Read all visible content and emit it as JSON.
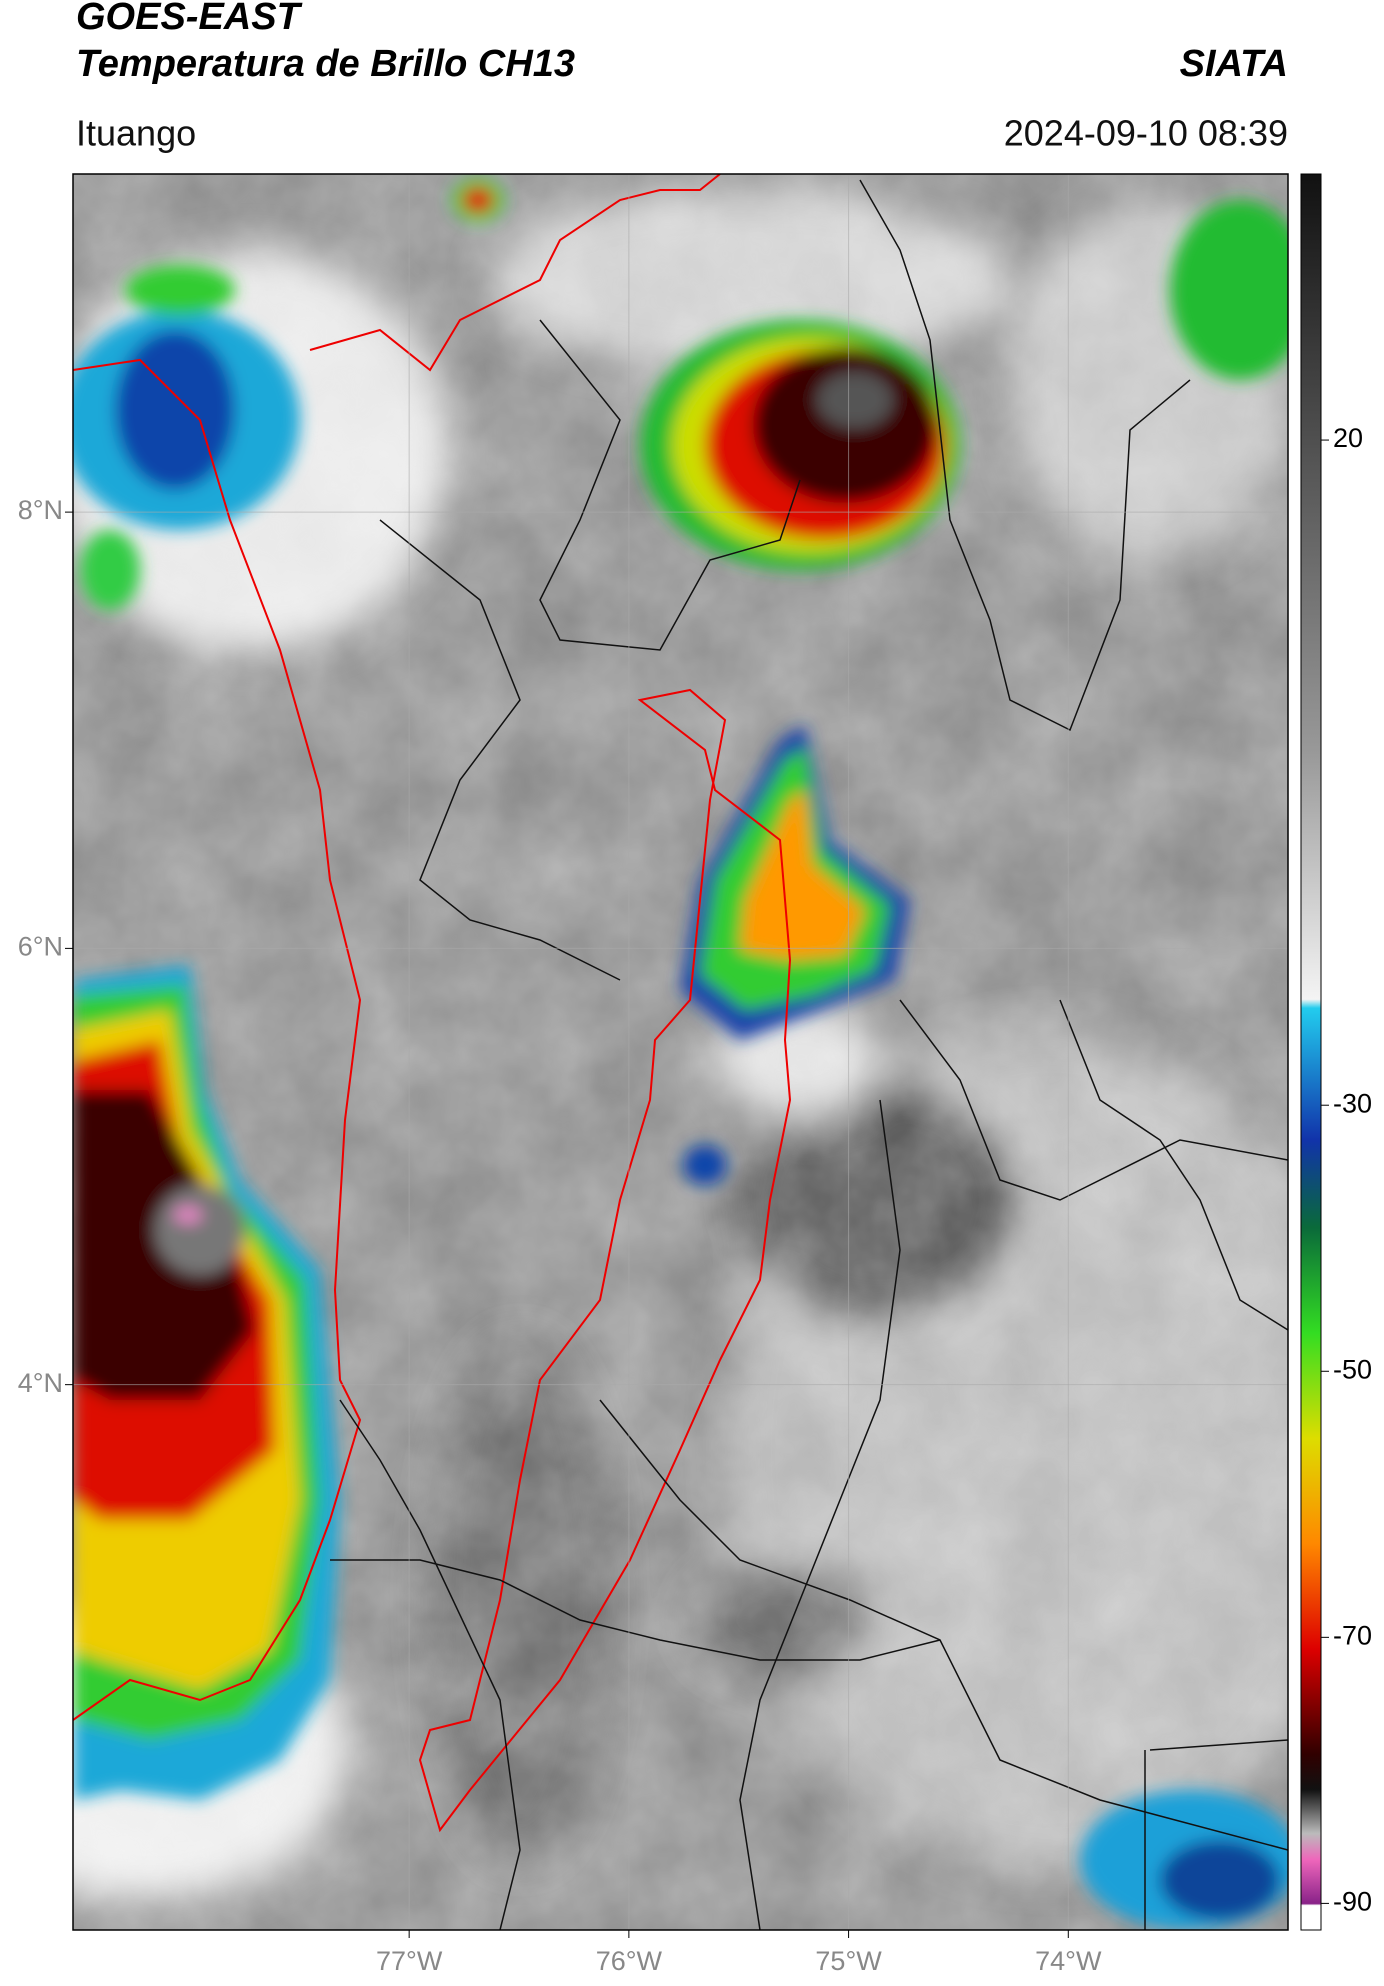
{
  "header": {
    "title": "GOES-EAST",
    "subtitle": "Temperatura de Brillo CH13",
    "agency": "SIATA",
    "location": "Ituango",
    "datetime": "2024-09-10 08:39"
  },
  "map": {
    "xlim": [
      -78.53,
      -73.0
    ],
    "ylim": [
      1.5,
      9.55
    ],
    "xticks": [
      {
        "value": -77,
        "label": "77°W"
      },
      {
        "value": -76,
        "label": "76°W"
      },
      {
        "value": -75,
        "label": "75°W"
      },
      {
        "value": -74,
        "label": "74°W"
      }
    ],
    "yticks": [
      {
        "value": 8,
        "label": "8°N"
      },
      {
        "value": 6,
        "label": "6°N"
      },
      {
        "value": 4,
        "label": "4°N"
      }
    ],
    "grid": true
  },
  "colorbar": {
    "lim": [
      -92,
      40
    ],
    "ticks": [
      20,
      -30,
      -50,
      -70,
      -90
    ]
  }
}
